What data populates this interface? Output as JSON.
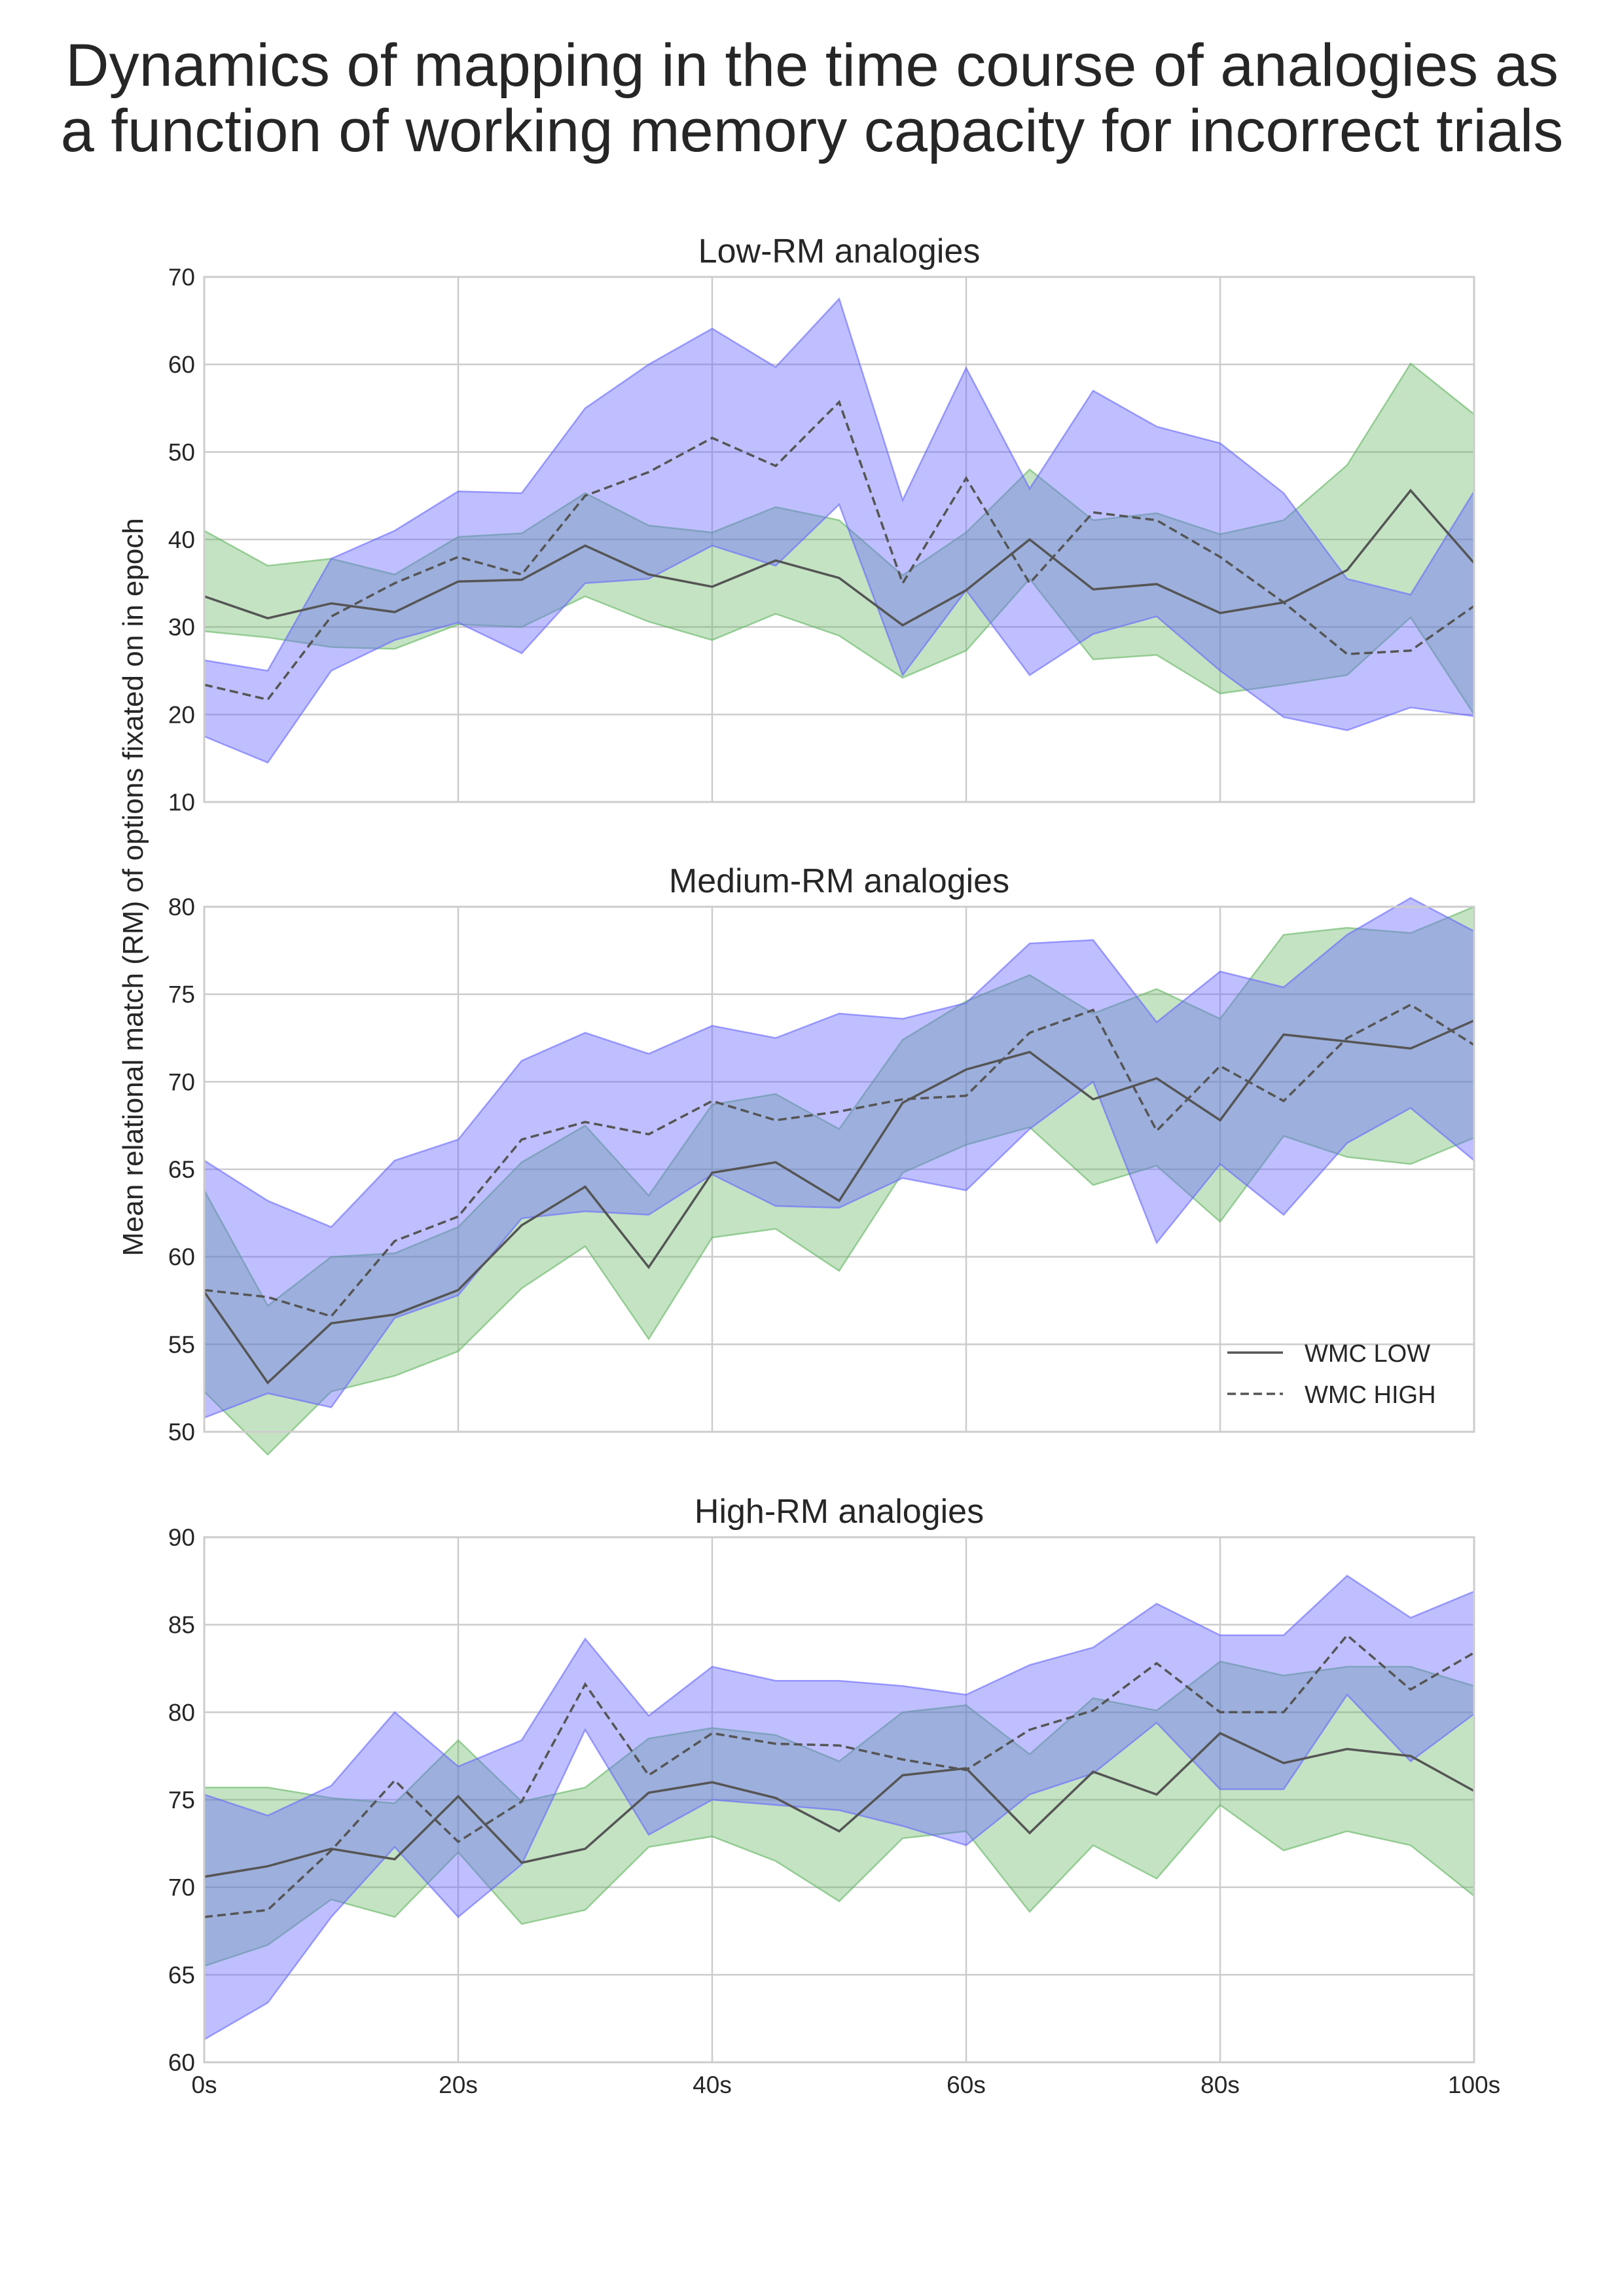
{
  "figure": {
    "title_line1": "Dynamics of mapping in the time course of analogies as",
    "title_line2": "a function of working memory capacity for incorrect trials",
    "ylabel": "Mean relational match (RM) of options fixated on in epoch"
  },
  "colors": {
    "wmc_low_band": "#63b560",
    "wmc_high_band": "#6666ff",
    "line": "#555555",
    "grid": "#cccccc",
    "axes_edge": "#cccccc"
  },
  "legend": {
    "position": "lower-right",
    "entries": [
      {
        "label": "WMC LOW",
        "style": "solid"
      },
      {
        "label": "WMC HIGH",
        "style": "dashed"
      }
    ]
  },
  "chart_data": [
    {
      "type": "line",
      "title": "Low-RM analogies",
      "xlim": [
        0,
        100
      ],
      "ylim": [
        10,
        70
      ],
      "x_ticks": [
        "0s",
        "20s",
        "40s",
        "60s",
        "80s",
        "100s"
      ],
      "y_ticks": [
        10,
        20,
        30,
        40,
        50,
        60,
        70
      ],
      "x_tick_labels_visible": false,
      "grid": true,
      "x": [
        0,
        5,
        10,
        15,
        20,
        25,
        30,
        35,
        40,
        45,
        50,
        55,
        60,
        65,
        70,
        75,
        80,
        85,
        90,
        95,
        100
      ],
      "series": [
        {
          "name": "WMC LOW",
          "linestyle": "solid",
          "band": "green",
          "values": [
            33.5,
            31,
            32.7,
            31.7,
            35.2,
            35.4,
            39.3,
            36,
            34.6,
            37.6,
            35.6,
            30.2,
            34.2,
            40,
            34.3,
            34.9,
            31.6,
            32.8,
            36.5,
            45.6,
            37.3
          ],
          "lower": [
            29.5,
            28.8,
            27.7,
            27.5,
            30.3,
            30,
            33.5,
            30.6,
            28.5,
            31.5,
            29,
            24.2,
            27.3,
            35.5,
            26.3,
            26.8,
            22.4,
            23.4,
            24.5,
            31.1,
            20
          ],
          "upper": [
            41,
            37,
            37.8,
            36,
            40.3,
            40.7,
            45.3,
            41.6,
            40.8,
            43.7,
            42.2,
            35.9,
            40.8,
            48,
            42.2,
            43,
            40.6,
            42.2,
            48.5,
            60.1,
            54.3
          ]
        },
        {
          "name": "WMC HIGH",
          "linestyle": "dashed",
          "band": "blue",
          "values": [
            23.4,
            21.7,
            31.2,
            35,
            38,
            36,
            45,
            47.7,
            51.6,
            48.4,
            55.7,
            35,
            47,
            35,
            43.1,
            42.2,
            38,
            32.8,
            26.9,
            27.3,
            32.4
          ],
          "lower": [
            17.5,
            14.5,
            25,
            28.5,
            30.5,
            27,
            35,
            35.5,
            39.3,
            37,
            44,
            24.5,
            34.2,
            24.5,
            29.2,
            31.2,
            25,
            19.7,
            18.2,
            20.8,
            19.8
          ],
          "upper": [
            26.2,
            25,
            37.8,
            41,
            45.5,
            45.3,
            55,
            60,
            64.1,
            59.7,
            67.5,
            44.5,
            59.6,
            45.8,
            57,
            52.9,
            51,
            45.3,
            35.5,
            33.7,
            45.5
          ]
        }
      ]
    },
    {
      "type": "line",
      "title": "Medium-RM analogies",
      "xlim": [
        0,
        100
      ],
      "ylim": [
        50,
        80
      ],
      "x_ticks": [
        "0s",
        "20s",
        "40s",
        "60s",
        "80s",
        "100s"
      ],
      "y_ticks": [
        50,
        55,
        60,
        65,
        70,
        75,
        80
      ],
      "x_tick_labels_visible": false,
      "grid": true,
      "x": [
        0,
        5,
        10,
        15,
        20,
        25,
        30,
        35,
        40,
        45,
        50,
        55,
        60,
        65,
        70,
        75,
        80,
        85,
        90,
        95,
        100
      ],
      "series": [
        {
          "name": "WMC LOW",
          "linestyle": "solid",
          "band": "green",
          "values": [
            58,
            52.8,
            56.2,
            56.7,
            58.1,
            61.8,
            64,
            59.4,
            64.8,
            65.4,
            63.2,
            68.8,
            70.7,
            71.7,
            69,
            70.2,
            67.8,
            72.7,
            72.3,
            71.9,
            73.5
          ],
          "lower": [
            52.3,
            48.7,
            52.3,
            53.2,
            54.6,
            58.2,
            60.6,
            55.3,
            61.1,
            61.6,
            59.2,
            64.8,
            66.4,
            67.4,
            64.1,
            65.2,
            62,
            66.9,
            65.7,
            65.3,
            66.8
          ],
          "upper": [
            63.8,
            57.2,
            60,
            60.2,
            61.7,
            65.4,
            67.5,
            63.5,
            68.7,
            69.3,
            67.3,
            72.4,
            74.6,
            76.1,
            73.9,
            75.3,
            73.6,
            78.4,
            78.8,
            78.5,
            80
          ]
        },
        {
          "name": "WMC HIGH",
          "linestyle": "dashed",
          "band": "blue",
          "values": [
            58.1,
            57.7,
            56.6,
            60.9,
            62.3,
            66.7,
            67.7,
            67,
            68.9,
            67.8,
            68.3,
            69,
            69.2,
            72.8,
            74.1,
            67.2,
            70.9,
            68.9,
            72.5,
            74.4,
            72.1
          ],
          "lower": [
            50.8,
            52.2,
            51.4,
            56.5,
            57.8,
            62.2,
            62.6,
            62.4,
            64.7,
            62.9,
            62.8,
            64.5,
            63.8,
            67.3,
            70,
            60.8,
            65.3,
            62.4,
            66.5,
            68.5,
            65.5
          ],
          "upper": [
            65.5,
            63.2,
            61.7,
            65.5,
            66.7,
            71.2,
            72.8,
            71.6,
            73.2,
            72.5,
            73.9,
            73.6,
            74.5,
            77.9,
            78.1,
            73.4,
            76.3,
            75.4,
            78.4,
            80.5,
            78.6
          ]
        }
      ]
    },
    {
      "type": "line",
      "title": "High-RM analogies",
      "xlim": [
        0,
        100
      ],
      "ylim": [
        60,
        90
      ],
      "x_ticks": [
        "0s",
        "20s",
        "40s",
        "60s",
        "80s",
        "100s"
      ],
      "y_ticks": [
        60,
        65,
        70,
        75,
        80,
        85,
        90
      ],
      "x_tick_labels_visible": true,
      "grid": true,
      "x": [
        0,
        5,
        10,
        15,
        20,
        25,
        30,
        35,
        40,
        45,
        50,
        55,
        60,
        65,
        70,
        75,
        80,
        85,
        90,
        95,
        100
      ],
      "series": [
        {
          "name": "WMC LOW",
          "linestyle": "solid",
          "band": "green",
          "values": [
            70.6,
            71.2,
            72.2,
            71.6,
            75.2,
            71.4,
            72.2,
            75.4,
            76,
            75.1,
            73.2,
            76.4,
            76.8,
            73.1,
            76.6,
            75.3,
            78.8,
            77.1,
            77.9,
            77.5,
            75.5
          ],
          "lower": [
            65.5,
            66.7,
            69.3,
            68.3,
            72,
            67.9,
            68.7,
            72.3,
            72.9,
            71.5,
            69.2,
            72.8,
            73.2,
            68.6,
            72.4,
            70.5,
            74.7,
            72.1,
            73.2,
            72.4,
            69.5
          ],
          "upper": [
            75.7,
            75.7,
            75.1,
            74.8,
            78.4,
            74.9,
            75.7,
            78.5,
            79.1,
            78.7,
            77.2,
            80,
            80.4,
            77.6,
            80.8,
            80.1,
            82.9,
            82.1,
            82.6,
            82.6,
            81.5
          ]
        },
        {
          "name": "WMC HIGH",
          "linestyle": "dashed",
          "band": "blue",
          "values": [
            68.3,
            68.7,
            72.1,
            76.1,
            72.6,
            74.9,
            81.6,
            76.4,
            78.8,
            78.2,
            78.1,
            77.3,
            76.7,
            79,
            80.1,
            82.8,
            80,
            80,
            84.4,
            81.3,
            83.4
          ],
          "lower": [
            61.3,
            63.4,
            68.3,
            72.3,
            68.3,
            71.3,
            79,
            73,
            75,
            74.7,
            74.4,
            73.5,
            72.4,
            75.3,
            76.5,
            79.4,
            75.6,
            75.6,
            81,
            77.2,
            79.9
          ],
          "upper": [
            75.3,
            74.1,
            75.8,
            80,
            76.9,
            78.4,
            84.2,
            79.8,
            82.6,
            81.8,
            81.8,
            81.5,
            81,
            82.7,
            83.7,
            86.2,
            84.4,
            84.4,
            87.8,
            85.4,
            86.9
          ]
        }
      ]
    }
  ]
}
